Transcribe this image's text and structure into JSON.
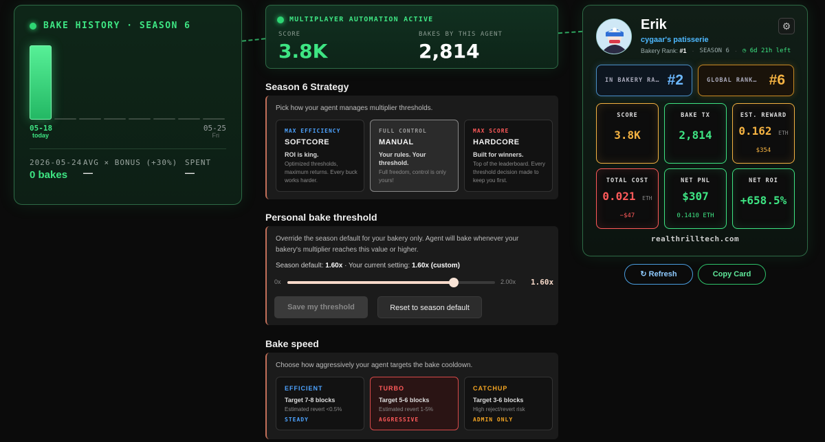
{
  "history": {
    "title": "BAKE HISTORY · SEASON 6",
    "bar_levels": [
      1,
      0,
      0,
      0,
      0,
      0,
      0,
      0
    ],
    "start_date": "05-18",
    "start_tag": "today",
    "end_date": "05-25",
    "end_tag": "Fri",
    "date_label": "2026-05-24",
    "date_value": "0 bakes",
    "avg_label": "AVG × BONUS (+30%)",
    "avg_value": "—",
    "spent_label": "SPENT",
    "spent_value": "—"
  },
  "automation": {
    "title": "MULTIPLAYER AUTOMATION ACTIVE",
    "score_label": "SCORE",
    "score_value": "3.8K",
    "bakes_label": "BAKES BY THIS AGENT",
    "bakes_value": "2,814"
  },
  "strategy": {
    "title": "Season 6 Strategy",
    "desc": "Pick how your agent manages multiplier thresholds.",
    "options": [
      {
        "label": "MAX EFFICIENCY",
        "name": "SOFTCORE",
        "summary": "ROI is king.",
        "detail": "Optimized thresholds, maximum returns. Every buck works harder.",
        "color": "#4da3ff"
      },
      {
        "label": "FULL CONTROL",
        "name": "MANUAL",
        "summary": "Your rules. Your threshold.",
        "detail": "Full freedom, control is only yours!",
        "color": "#9a9a9a"
      },
      {
        "label": "MAX SCORE",
        "name": "HARDCORE",
        "summary": "Built for winners.",
        "detail": "Top of the leaderboard. Every threshold decision made to keep you first.",
        "color": "#ff5a5a"
      }
    ]
  },
  "threshold": {
    "title": "Personal bake threshold",
    "desc": "Override the season default for your bakery only. Agent will bake whenever your bakery's multiplier reaches this value or higher.",
    "default_prefix": "Season default: ",
    "default_value": "1.60x",
    "current_prefix": " · Your current setting: ",
    "current_value": "1.60x (custom)",
    "min_label": "0x",
    "max_label": "2.00x",
    "value_label": "1.60x",
    "slider_fraction": 0.8,
    "save_label": "Save my threshold",
    "reset_label": "Reset to season default"
  },
  "speed": {
    "title": "Bake speed",
    "desc": "Choose how aggressively your agent targets the bake cooldown.",
    "options": [
      {
        "name": "EFFICIENT",
        "target": "Target 7-8 blocks",
        "detail": "Estimated revert <0.5%",
        "tag": "STEADY",
        "color": "#4da3ff"
      },
      {
        "name": "TURBO",
        "target": "Target 5-6 blocks",
        "detail": "Estimated revert 1-5%",
        "tag": "AGGRESSIVE",
        "color": "#ff5a5a"
      },
      {
        "name": "CATCHUP",
        "target": "Target 3-6 blocks",
        "detail": "High reject/revert risk",
        "tag": "ADMIN ONLY",
        "color": "#f5a623"
      }
    ]
  },
  "profile": {
    "name": "Erik",
    "bakery": "cygaar's patisserie",
    "rank_prefix": "Bakery Rank: ",
    "rank_value": "#1",
    "season": "SEASON 6",
    "timer": "◷ 6d 21h left",
    "bakery_rank_label": "IN BAKERY RA…",
    "bakery_rank_value": "#2",
    "global_rank_label": "GLOBAL RANK…",
    "global_rank_value": "#6",
    "tiles": [
      {
        "label": "SCORE",
        "value": "3.8K",
        "unit": "",
        "sub": "",
        "color": "#f5b342"
      },
      {
        "label": "BAKE TX",
        "value": "2,814",
        "unit": "",
        "sub": "",
        "color": "#3ee583"
      },
      {
        "label": "EST. REWARD",
        "value": "0.162",
        "unit": "ETH",
        "sub": "$354",
        "color": "#f5b342"
      },
      {
        "label": "TOTAL COST",
        "value": "0.021",
        "unit": "ETH",
        "sub": "−$47",
        "color": "#ff5a5a"
      },
      {
        "label": "NET PNL",
        "value": "$307",
        "unit": "",
        "sub": "0.1410 ETH",
        "color": "#3ee583"
      },
      {
        "label": "NET ROI",
        "value": "+658.5%",
        "unit": "",
        "sub": "",
        "color": "#3ee583"
      }
    ],
    "site": "realthrilltech.com",
    "refresh_label": "↻ Refresh",
    "copy_label": "Copy Card"
  }
}
